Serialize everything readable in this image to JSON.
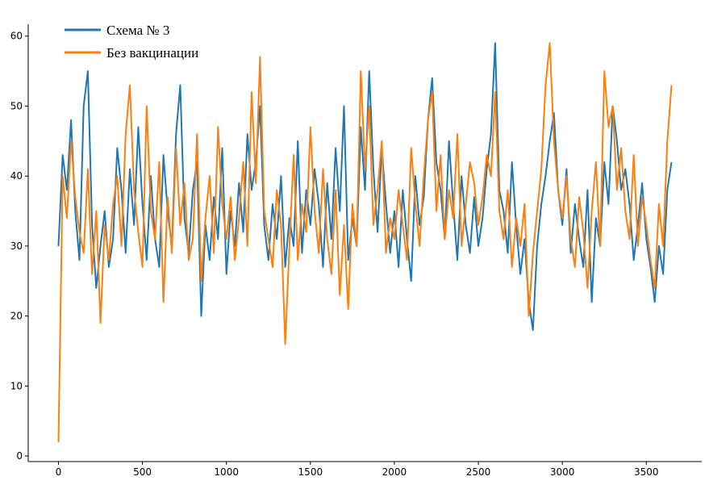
{
  "chart_data": {
    "type": "line",
    "x": [
      0,
      25,
      50,
      75,
      100,
      125,
      150,
      175,
      200,
      225,
      250,
      275,
      300,
      325,
      350,
      375,
      400,
      425,
      450,
      475,
      500,
      525,
      550,
      575,
      600,
      625,
      650,
      675,
      700,
      725,
      750,
      775,
      800,
      825,
      850,
      875,
      900,
      925,
      950,
      975,
      1000,
      1025,
      1050,
      1075,
      1100,
      1125,
      1150,
      1175,
      1200,
      1225,
      1250,
      1275,
      1300,
      1325,
      1350,
      1375,
      1400,
      1425,
      1450,
      1475,
      1500,
      1525,
      1550,
      1575,
      1600,
      1625,
      1650,
      1675,
      1700,
      1725,
      1750,
      1775,
      1800,
      1825,
      1850,
      1875,
      1900,
      1925,
      1950,
      1975,
      2000,
      2025,
      2050,
      2075,
      2100,
      2125,
      2150,
      2175,
      2200,
      2225,
      2250,
      2275,
      2300,
      2325,
      2350,
      2375,
      2400,
      2425,
      2450,
      2475,
      2500,
      2525,
      2550,
      2575,
      2600,
      2625,
      2650,
      2675,
      2700,
      2725,
      2750,
      2775,
      2800,
      2825,
      2850,
      2875,
      2900,
      2925,
      2950,
      2975,
      3000,
      3025,
      3050,
      3075,
      3100,
      3125,
      3150,
      3175,
      3200,
      3225,
      3250,
      3275,
      3300,
      3325,
      3350,
      3375,
      3400,
      3425,
      3450,
      3475,
      3500,
      3525,
      3550,
      3575,
      3600,
      3625,
      3650
    ],
    "series": [
      {
        "name": "Схема № 3",
        "color": "#1f77b4",
        "values": [
          30,
          43,
          38,
          48,
          35,
          28,
          50,
          55,
          33,
          24,
          30,
          35,
          27,
          31,
          44,
          38,
          29,
          41,
          33,
          47,
          36,
          28,
          40,
          31,
          27,
          43,
          35,
          30,
          46,
          53,
          34,
          29,
          38,
          42,
          20,
          33,
          28,
          37,
          31,
          44,
          26,
          35,
          30,
          39,
          32,
          46,
          38,
          42,
          50,
          33,
          28,
          36,
          31,
          40,
          27,
          34,
          30,
          45,
          29,
          38,
          33,
          41,
          36,
          27,
          39,
          31,
          44,
          35,
          50,
          28,
          34,
          30,
          47,
          38,
          55,
          41,
          32,
          44,
          36,
          29,
          35,
          27,
          38,
          31,
          25,
          40,
          33,
          37,
          48,
          54,
          42,
          38,
          31,
          45,
          36,
          28,
          40,
          33,
          29,
          37,
          30,
          34,
          41,
          46,
          59,
          38,
          35,
          29,
          42,
          33,
          26,
          31,
          22,
          18,
          30,
          36,
          40,
          45,
          49,
          38,
          33,
          41,
          29,
          36,
          31,
          27,
          38,
          22,
          34,
          30,
          42,
          36,
          50,
          45,
          38,
          41,
          36,
          28,
          33,
          39,
          31,
          27,
          22,
          30,
          26,
          38,
          42
        ]
      },
      {
        "name": "Без вакцинации",
        "color": "#ff7f0e",
        "values": [
          2,
          40,
          34,
          45,
          37,
          32,
          29,
          41,
          26,
          35,
          19,
          33,
          28,
          36,
          40,
          30,
          46,
          53,
          38,
          32,
          27,
          50,
          35,
          31,
          42,
          22,
          37,
          29,
          44,
          33,
          39,
          28,
          31,
          46,
          25,
          34,
          40,
          29,
          47,
          36,
          31,
          37,
          28,
          34,
          42,
          30,
          52,
          39,
          57,
          35,
          31,
          27,
          38,
          33,
          16,
          30,
          43,
          28,
          36,
          32,
          47,
          35,
          29,
          41,
          31,
          26,
          38,
          23,
          33,
          21,
          36,
          30,
          55,
          41,
          50,
          33,
          38,
          45,
          29,
          34,
          31,
          38,
          33,
          28,
          44,
          36,
          30,
          40,
          48,
          52,
          35,
          43,
          31,
          38,
          34,
          46,
          30,
          36,
          42,
          39,
          33,
          37,
          43,
          40,
          52,
          35,
          31,
          38,
          27,
          34,
          30,
          36,
          20,
          29,
          35,
          41,
          53,
          59,
          45,
          38,
          34,
          40,
          31,
          27,
          37,
          32,
          24,
          35,
          42,
          30,
          55,
          47,
          50,
          38,
          44,
          35,
          31,
          43,
          30,
          37,
          33,
          28,
          24,
          36,
          30,
          45,
          53
        ]
      }
    ],
    "xlim": [
      -180,
      3830
    ],
    "ylim": [
      -0.8,
      61.7
    ],
    "xticks": [
      0,
      500,
      1000,
      1500,
      2000,
      2500,
      3000,
      3500
    ],
    "yticks": [
      0,
      10,
      20,
      30,
      40,
      50,
      60
    ],
    "legend": "upper left"
  }
}
